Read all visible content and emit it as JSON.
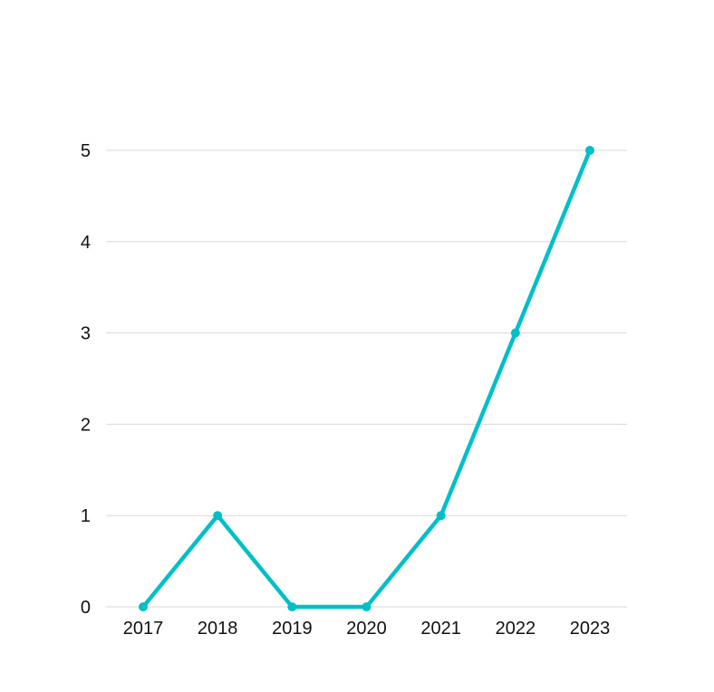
{
  "chart_data": {
    "type": "line",
    "title": "",
    "xlabel": "",
    "ylabel": "",
    "x": [
      "2017",
      "2018",
      "2019",
      "2020",
      "2021",
      "2022",
      "2023"
    ],
    "series": [
      {
        "values": [
          0,
          1,
          0,
          0,
          1,
          3,
          5
        ],
        "color": "#00bfc8"
      }
    ],
    "ylim": [
      0,
      5
    ],
    "yticks": [
      0,
      1,
      2,
      3,
      4,
      5
    ],
    "grid": true,
    "legend": "none"
  }
}
